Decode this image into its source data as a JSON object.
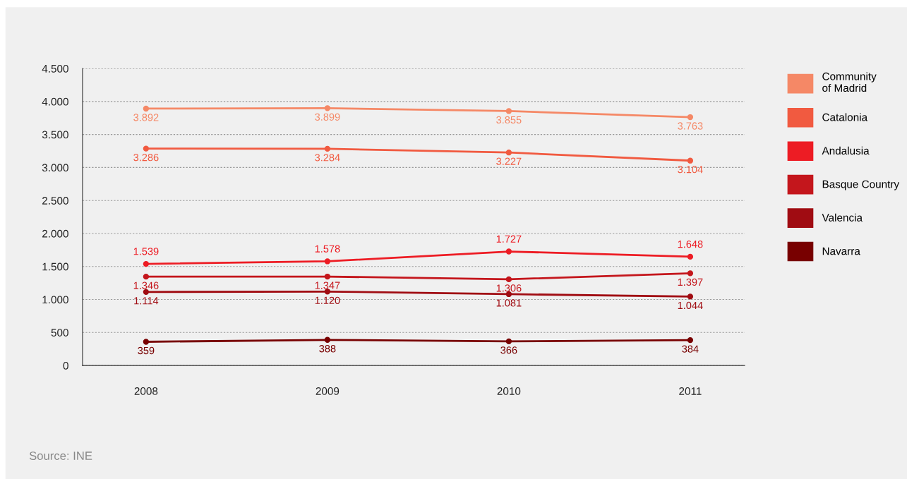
{
  "chart_data": {
    "type": "line",
    "categories": [
      "2008",
      "2009",
      "2010",
      "2011"
    ],
    "series": [
      {
        "name": "Community\nof Madrid",
        "color": "#f58866",
        "values": [
          3892,
          3899,
          3855,
          3763
        ],
        "value_labels": [
          "3.892",
          "3.899",
          "3.855",
          "3.763"
        ]
      },
      {
        "name": "Catalonia",
        "color": "#f15a40",
        "values": [
          3286,
          3284,
          3227,
          3104
        ],
        "value_labels": [
          "3.286",
          "3.284",
          "3.227",
          "3.104"
        ]
      },
      {
        "name": "Andalusia",
        "color": "#ed1c24",
        "values": [
          1539,
          1578,
          1727,
          1648
        ],
        "value_labels": [
          "1.539",
          "1.578",
          "1.727",
          "1.648"
        ]
      },
      {
        "name": "Basque Country",
        "color": "#c4161c",
        "values": [
          1346,
          1347,
          1306,
          1397
        ],
        "value_labels": [
          "1.346",
          "1.347",
          "1.306",
          "1.397"
        ]
      },
      {
        "name": "Valencia",
        "color": "#a00c12",
        "values": [
          1114,
          1120,
          1081,
          1044
        ],
        "value_labels": [
          "1.114",
          "1.120",
          "1.081",
          "1.044"
        ]
      },
      {
        "name": "Navarra",
        "color": "#780000",
        "values": [
          359,
          388,
          366,
          384
        ],
        "value_labels": [
          "359",
          "388",
          "366",
          "384"
        ]
      }
    ],
    "ylim": [
      0,
      4500
    ],
    "yticks": [
      0,
      {
        "value": 500,
        "label": "500"
      },
      {
        "value": 1000,
        "label": "1.000"
      },
      {
        "value": 1500,
        "label": "1.500"
      },
      {
        "value": 2000,
        "label": "2.000"
      },
      {
        "value": 2500,
        "label": "2.500"
      },
      {
        "value": 3000,
        "label": "3.000"
      },
      {
        "value": 3500,
        "label": "3.500"
      },
      {
        "value": 4000,
        "label": "4.000"
      },
      {
        "value": 4500,
        "label": "4.500"
      }
    ],
    "grid": "y",
    "legend": "right",
    "marker": "circle",
    "line_style": "solid",
    "annotations": [
      "Source: INE"
    ]
  }
}
